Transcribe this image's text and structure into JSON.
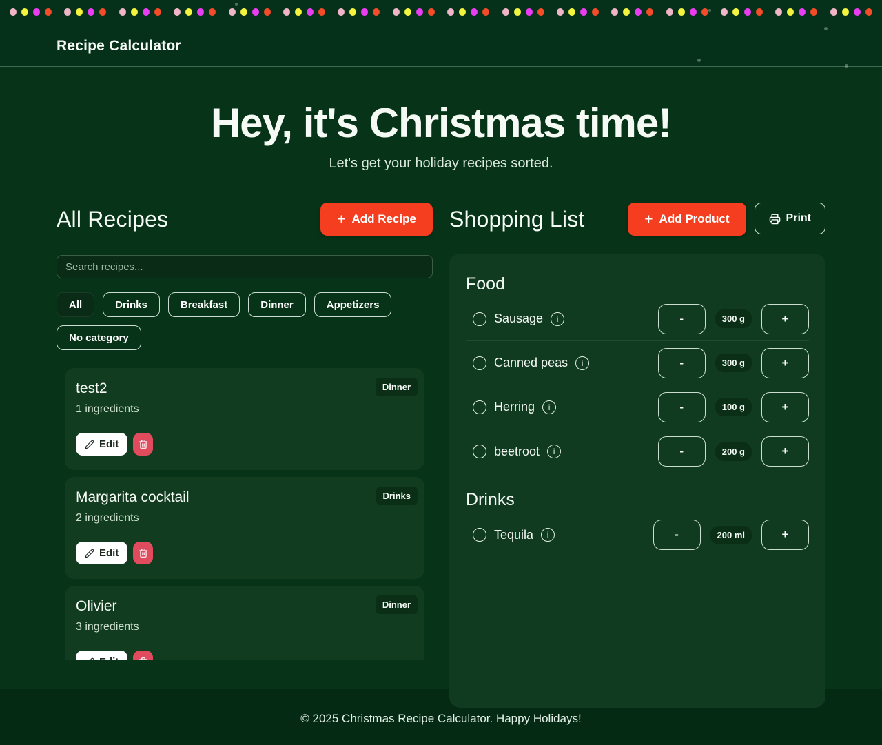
{
  "app": {
    "title": "Recipe Calculator"
  },
  "hero": {
    "title": "Hey, it's Christmas time!",
    "subtitle": "Let's get your holiday recipes sorted."
  },
  "icons": {
    "plus": "+",
    "info": "i"
  },
  "lights": {
    "colors": [
      "#f0b6c8",
      "#f3f43e",
      "#ea3df2",
      "#f44b28"
    ],
    "groups": 16
  },
  "recipes": {
    "heading": "All Recipes",
    "add_button_label": "Add Recipe",
    "search_placeholder": "Search recipes...",
    "filters": [
      {
        "label": "All",
        "active": true
      },
      {
        "label": "Drinks",
        "active": false
      },
      {
        "label": "Breakfast",
        "active": false
      },
      {
        "label": "Dinner",
        "active": false
      },
      {
        "label": "Appetizers",
        "active": false
      },
      {
        "label": "No category",
        "active": false
      }
    ],
    "edit_label": "Edit",
    "cards": [
      {
        "title": "test2",
        "category": "Dinner",
        "ingredients": "1 ingredients"
      },
      {
        "title": "Margarita cocktail",
        "category": "Drinks",
        "ingredients": "2 ingredients"
      },
      {
        "title": "Olivier",
        "category": "Dinner",
        "ingredients": "3 ingredients"
      }
    ]
  },
  "shopping": {
    "heading": "Shopping List",
    "add_button_label": "Add Product",
    "print_button_label": "Print",
    "controls": {
      "decrease": "-",
      "increase": "+"
    },
    "sections": [
      {
        "name": "Food",
        "items": [
          {
            "name": "Sausage",
            "qty": "300 g"
          },
          {
            "name": "Canned peas",
            "qty": "300 g"
          },
          {
            "name": "Herring",
            "qty": "100 g"
          },
          {
            "name": "beetroot",
            "qty": "200 g"
          }
        ]
      },
      {
        "name": "Drinks",
        "items": [
          {
            "name": "Tequila",
            "qty": "200 ml"
          }
        ]
      }
    ]
  },
  "footer": {
    "text": "© 2025 Christmas Recipe Calculator. Happy Holidays!"
  },
  "colors": {
    "accent": "#f53e1f",
    "danger": "#e04b5e",
    "page_bg": "#073418",
    "header_bg": "#05301a",
    "panel_bg": "#113b20",
    "footer_bg": "#042a14"
  }
}
